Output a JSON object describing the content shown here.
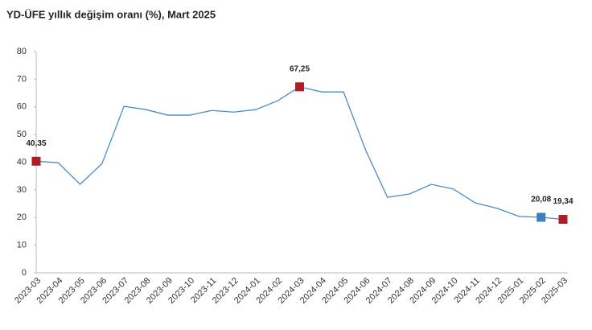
{
  "chart_data": {
    "type": "line",
    "title": "YD-ÜFE yıllık değişim oranı (%), Mart 2025",
    "categories": [
      "2023-03",
      "2023-04",
      "2023-05",
      "2023-06",
      "2023-07",
      "2023-08",
      "2023-09",
      "2023-10",
      "2023-11",
      "2023-12",
      "2024-01",
      "2024-02",
      "2024-03",
      "2024-04",
      "2024-05",
      "2024-06",
      "2024-07",
      "2024-08",
      "2024-09",
      "2024-10",
      "2024-11",
      "2024-12",
      "2025-01",
      "2025-02",
      "2025-03"
    ],
    "series": [
      {
        "name": "YD-ÜFE",
        "color": "#4a8cc7",
        "values": [
          40.35,
          39.8,
          32.0,
          39.5,
          60.2,
          59.0,
          57.0,
          57.0,
          58.7,
          58.1,
          59.0,
          62.2,
          67.25,
          65.4,
          65.4,
          44.5,
          27.3,
          28.5,
          32.0,
          30.3,
          25.3,
          23.3,
          20.4,
          20.08,
          19.34
        ],
        "value_labels": [
          "40,35",
          null,
          null,
          null,
          null,
          null,
          null,
          null,
          null,
          null,
          null,
          null,
          "67,25",
          null,
          null,
          null,
          null,
          null,
          null,
          null,
          null,
          null,
          null,
          "20,08",
          "19,34"
        ],
        "point_colors": [
          "#b01c22",
          null,
          null,
          null,
          null,
          null,
          null,
          null,
          null,
          null,
          null,
          null,
          "#b01c22",
          null,
          null,
          null,
          null,
          null,
          null,
          null,
          null,
          null,
          null,
          "#3a7fc4",
          "#b01c22"
        ]
      }
    ],
    "ylim": [
      0,
      80
    ],
    "yticks": [
      0,
      10,
      20,
      30,
      40,
      50,
      60,
      70,
      80
    ]
  }
}
